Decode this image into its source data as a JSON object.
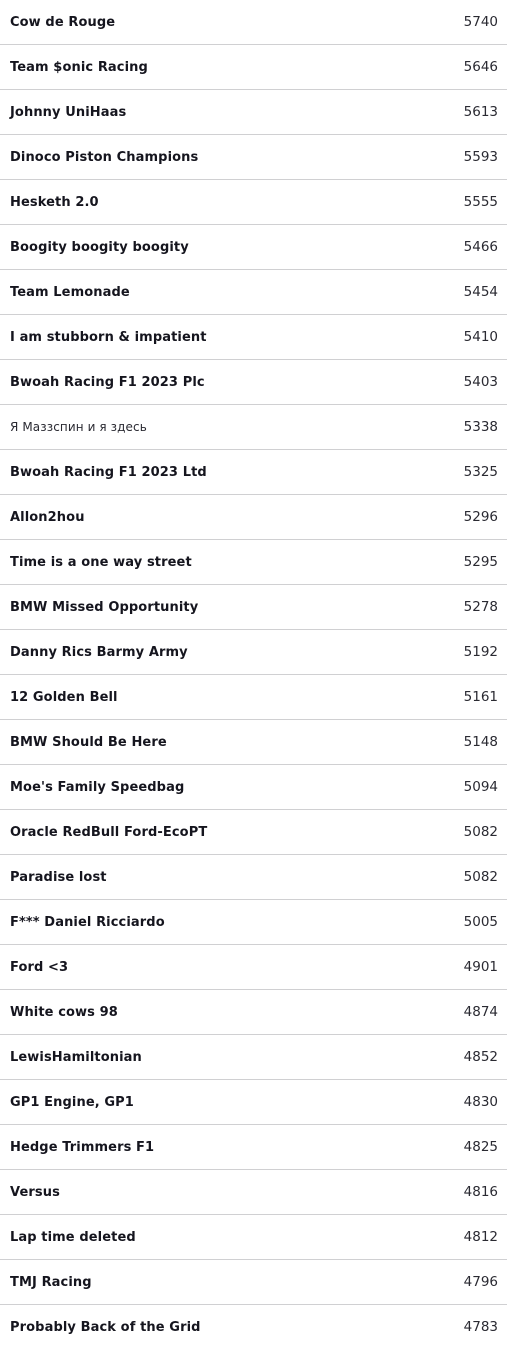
{
  "leaderboard": {
    "rows": [
      {
        "name": "Cow de Rouge",
        "points": "5740"
      },
      {
        "name": "Team $onic Racing",
        "points": "5646"
      },
      {
        "name": "Johnny UniHaas",
        "points": "5613"
      },
      {
        "name": "Dinoco Piston Champions",
        "points": "5593"
      },
      {
        "name": "Hesketh 2.0",
        "points": "5555"
      },
      {
        "name": "Boogity boogity boogity",
        "points": "5466"
      },
      {
        "name": "Team Lemonade",
        "points": "5454"
      },
      {
        "name": "I am stubborn & impatient",
        "points": "5410"
      },
      {
        "name": "Bwoah Racing F1 2023 Plc",
        "points": "5403"
      },
      {
        "name": "Я Маззспин и я здесь",
        "points": "5338",
        "plain": true
      },
      {
        "name": "Bwoah Racing F1 2023 Ltd",
        "points": "5325"
      },
      {
        "name": "Allon2hou",
        "points": "5296"
      },
      {
        "name": "Time is a one way street",
        "points": "5295"
      },
      {
        "name": "BMW Missed Opportunity",
        "points": "5278"
      },
      {
        "name": "Danny Rics Barmy Army",
        "points": "5192"
      },
      {
        "name": "12 Golden Bell",
        "points": "5161"
      },
      {
        "name": "BMW Should Be Here",
        "points": "5148"
      },
      {
        "name": "Moe's Family Speedbag",
        "points": "5094"
      },
      {
        "name": "Oracle RedBull Ford-EcoPT",
        "points": "5082"
      },
      {
        "name": "Paradise lost",
        "points": "5082"
      },
      {
        "name": "F*** Daniel Ricciardo",
        "points": "5005"
      },
      {
        "name": "Ford <3",
        "points": "4901"
      },
      {
        "name": "White cows 98",
        "points": "4874"
      },
      {
        "name": "LewisHamiltonian",
        "points": "4852"
      },
      {
        "name": "GP1 Engine, GP1",
        "points": "4830"
      },
      {
        "name": "Hedge Trimmers F1",
        "points": "4825"
      },
      {
        "name": "Versus",
        "points": "4816"
      },
      {
        "name": "Lap time deleted",
        "points": "4812"
      },
      {
        "name": "TMJ Racing",
        "points": "4796"
      },
      {
        "name": "Probably Back of the Grid",
        "points": "4783"
      }
    ]
  }
}
